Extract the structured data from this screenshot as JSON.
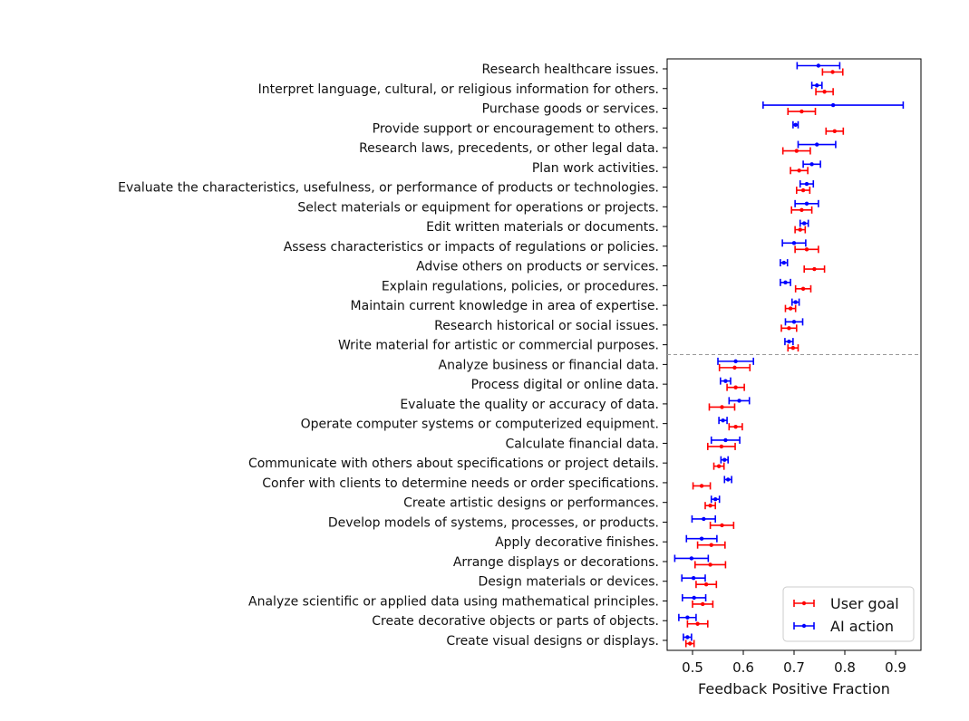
{
  "chart_data": {
    "type": "errorbar",
    "title": "",
    "xlabel": "Feedback Positive Fraction",
    "ylabel": "",
    "xlim": [
      0.45,
      0.95
    ],
    "xticks": [
      0.5,
      0.6,
      0.7,
      0.8,
      0.9
    ],
    "xtick_labels": [
      "0.5",
      "0.6",
      "0.7",
      "0.8",
      "0.9"
    ],
    "grid": false,
    "legend_position": "bottom-right",
    "divider": {
      "style": "dashed",
      "between": [
        "Write material for artistic or commercial purposes.",
        "Analyze business or financial data."
      ]
    },
    "categories": [
      "Research healthcare issues.",
      "Interpret language, cultural, or religious information for others.",
      "Purchase goods or services.",
      "Provide support or encouragement to others.",
      "Research laws, precedents, or other legal data.",
      "Plan work activities.",
      "Evaluate the characteristics, usefulness, or performance of products or technologies.",
      "Select materials or equipment for operations or projects.",
      "Edit written materials or documents.",
      "Assess characteristics or impacts of regulations or policies.",
      "Advise others on products or services.",
      "Explain regulations, policies, or procedures.",
      "Maintain current knowledge in area of expertise.",
      "Research historical or social issues.",
      "Write material for artistic or commercial purposes.",
      "Analyze business or financial data.",
      "Process digital or online data.",
      "Evaluate the quality or accuracy of data.",
      "Operate computer systems or computerized equipment.",
      "Calculate financial data.",
      "Communicate with others about specifications or project details.",
      "Confer with clients to determine needs or order specifications.",
      "Create artistic designs or performances.",
      "Develop models of systems, processes, or products.",
      "Apply decorative finishes.",
      "Arrange displays or decorations.",
      "Design materials or devices.",
      "Analyze scientific or applied data using mathematical principles.",
      "Create decorative objects or parts of objects.",
      "Create visual designs or displays."
    ],
    "series": [
      {
        "name": "User goal",
        "color": "#ff0000",
        "values": [
          0.776,
          0.76,
          0.715,
          0.78,
          0.705,
          0.71,
          0.718,
          0.715,
          0.712,
          0.725,
          0.74,
          0.718,
          0.693,
          0.69,
          0.698,
          0.583,
          0.585,
          0.558,
          0.585,
          0.557,
          0.552,
          0.518,
          0.535,
          0.558,
          0.537,
          0.535,
          0.527,
          0.52,
          0.51,
          0.495
        ],
        "err": [
          0.02,
          0.017,
          0.027,
          0.017,
          0.027,
          0.017,
          0.013,
          0.02,
          0.01,
          0.023,
          0.02,
          0.015,
          0.01,
          0.015,
          0.01,
          0.03,
          0.017,
          0.025,
          0.013,
          0.027,
          0.01,
          0.017,
          0.01,
          0.023,
          0.027,
          0.03,
          0.02,
          0.02,
          0.02,
          0.008
        ]
      },
      {
        "name": "AI action",
        "color": "#0000ff",
        "values": [
          0.748,
          0.745,
          0.777,
          0.703,
          0.745,
          0.735,
          0.725,
          0.725,
          0.72,
          0.7,
          0.68,
          0.683,
          0.703,
          0.7,
          0.69,
          0.585,
          0.565,
          0.592,
          0.56,
          0.565,
          0.563,
          0.57,
          0.545,
          0.522,
          0.518,
          0.498,
          0.502,
          0.503,
          0.49,
          0.49
        ],
        "err": [
          0.042,
          0.01,
          0.138,
          0.005,
          0.037,
          0.017,
          0.013,
          0.023,
          0.008,
          0.023,
          0.007,
          0.01,
          0.007,
          0.017,
          0.008,
          0.035,
          0.01,
          0.02,
          0.008,
          0.028,
          0.007,
          0.007,
          0.008,
          0.023,
          0.03,
          0.033,
          0.023,
          0.023,
          0.017,
          0.008
        ]
      }
    ]
  }
}
